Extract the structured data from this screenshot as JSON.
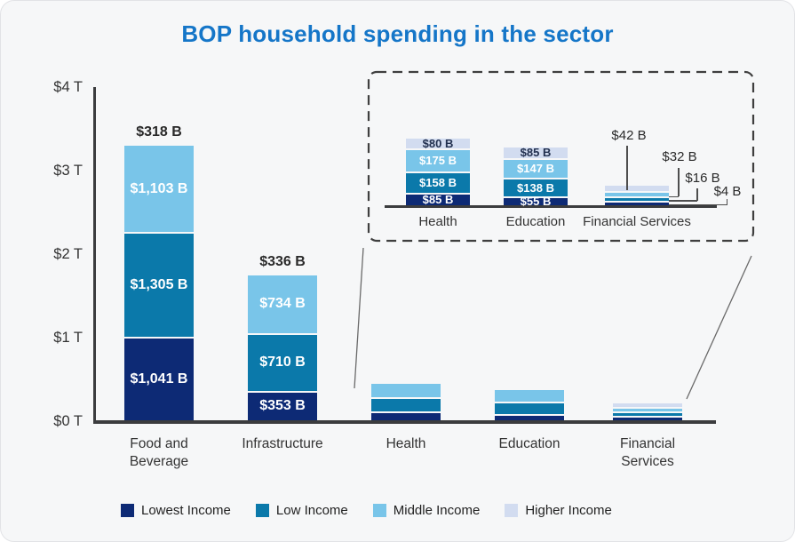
{
  "chart_data": {
    "type": "bar",
    "stacked": true,
    "title": "BOP household spending in the sector",
    "unit": "billions of USD",
    "yaxis": {
      "ticks": [
        "$0 T",
        "$1 T",
        "$2 T",
        "$3 T",
        "$4 T"
      ],
      "ylim_trillions": [
        0,
        4
      ],
      "grid": false
    },
    "series_order": [
      "Lowest Income",
      "Low Income",
      "Middle Income",
      "Higher Income"
    ],
    "colors": {
      "Lowest Income": "#0d2a75",
      "Low Income": "#0b79aa",
      "Middle Income": "#79c5e9",
      "Higher Income": "#d2dcf0",
      "title": "#1576c8",
      "axis": "#3b3c3e"
    },
    "categories": [
      {
        "label": "Food and Beverage",
        "label_lines": [
          "Food and",
          "Beverage"
        ],
        "values": {
          "Lowest Income": 1041,
          "Low Income": 1305,
          "Middle Income": 1103,
          "Higher Income": 318
        },
        "segment_labels": [
          "$1,041 B",
          "$1,305 B",
          "$1,103 B"
        ],
        "top_label": "$318 B",
        "main_drawn_segments": 3
      },
      {
        "label": "Infrastructure",
        "label_lines": [
          "Infrastructure"
        ],
        "values": {
          "Lowest Income": 353,
          "Low Income": 710,
          "Middle Income": 734,
          "Higher Income": 336
        },
        "segment_labels": [
          "$353 B",
          "$710 B",
          "$734 B"
        ],
        "top_label": "$336 B",
        "main_drawn_segments": 3
      },
      {
        "label": "Health",
        "label_lines": [
          "Health"
        ],
        "values": {
          "Lowest Income": 85,
          "Low Income": 158,
          "Middle Income": 175,
          "Higher Income": 80
        },
        "main_drawn_segments": 3
      },
      {
        "label": "Education",
        "label_lines": [
          "Education"
        ],
        "values": {
          "Lowest Income": 55,
          "Low Income": 138,
          "Middle Income": 147,
          "Higher Income": 85
        },
        "main_drawn_segments": 3
      },
      {
        "label": "Financial Services",
        "label_lines": [
          "Financial",
          "Services"
        ],
        "values": {
          "Lowest Income": 4,
          "Low Income": 16,
          "Middle Income": 32,
          "Higher Income": 42
        },
        "main_drawn_segments": 4
      }
    ],
    "inset": {
      "description": "zoomed detail of Health, Education and Financial Services",
      "categories": [
        {
          "label": "Health",
          "segments": [
            {
              "series": "Lowest Income",
              "value": 85,
              "label": "$85 B"
            },
            {
              "series": "Low Income",
              "value": 158,
              "label": "$158 B"
            },
            {
              "series": "Middle Income",
              "value": 175,
              "label": "$175 B"
            },
            {
              "series": "Higher Income",
              "value": 80,
              "label": "$80 B"
            }
          ]
        },
        {
          "label": "Education",
          "segments": [
            {
              "series": "Lowest Income",
              "value": 55,
              "label": "$55 B"
            },
            {
              "series": "Low Income",
              "value": 138,
              "label": "$138 B"
            },
            {
              "series": "Middle Income",
              "value": 147,
              "label": "$147 B"
            },
            {
              "series": "Higher Income",
              "value": 85,
              "label": "$85 B"
            }
          ]
        },
        {
          "label": "Financial Services",
          "labels_as_callouts": true,
          "segments": [
            {
              "series": "Lowest Income",
              "value": 4,
              "label": "$4 B"
            },
            {
              "series": "Low Income",
              "value": 16,
              "label": "$16 B"
            },
            {
              "series": "Middle Income",
              "value": 32,
              "label": "$32 B"
            },
            {
              "series": "Higher Income",
              "value": 42,
              "label": "$42 B"
            }
          ]
        }
      ]
    },
    "legend": [
      "Lowest Income",
      "Low Income",
      "Middle Income",
      "Higher Income"
    ],
    "legend_position": "bottom"
  }
}
